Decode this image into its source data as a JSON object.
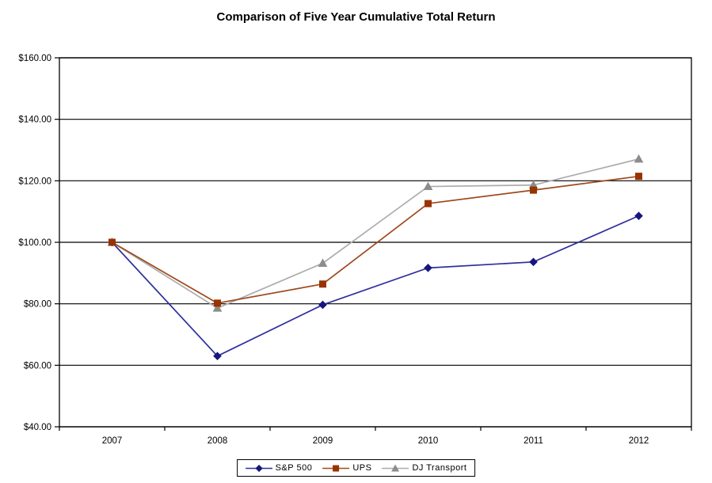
{
  "title": "Comparison of Five Year Cumulative Total Return",
  "chart_data": {
    "type": "line",
    "title": "Comparison of Five Year Cumulative Total Return",
    "categories": [
      "2007",
      "2008",
      "2009",
      "2010",
      "2011",
      "2012"
    ],
    "series": [
      {
        "name": "S&P 500",
        "marker": "diamond",
        "line_color": "#2E2E9E",
        "marker_color": "#16167E",
        "values": [
          100.0,
          63.0,
          79.67,
          91.67,
          93.61,
          108.59
        ]
      },
      {
        "name": "UPS",
        "marker": "square",
        "line_color": "#9E4A1E",
        "marker_color": "#993300",
        "values": [
          100.0,
          80.2,
          86.42,
          112.6,
          116.97,
          121.46
        ]
      },
      {
        "name": "DJ Transport",
        "marker": "triangle",
        "line_color": "#ACACAC",
        "marker_color": "#8C8C8C",
        "values": [
          100.0,
          78.58,
          93.19,
          118.14,
          118.6,
          127.07
        ]
      }
    ],
    "xlabel": "",
    "ylabel": "",
    "ylim": [
      40,
      160
    ],
    "y_tick_step": 20,
    "y_tick_labels": [
      "$40.00",
      "$60.00",
      "$80.00",
      "$100.00",
      "$120.00",
      "$140.00",
      "$160.00"
    ],
    "grid": "horizontal",
    "gridline_color": "#000000",
    "axis_color": "#000000",
    "legend_position": "bottom"
  }
}
